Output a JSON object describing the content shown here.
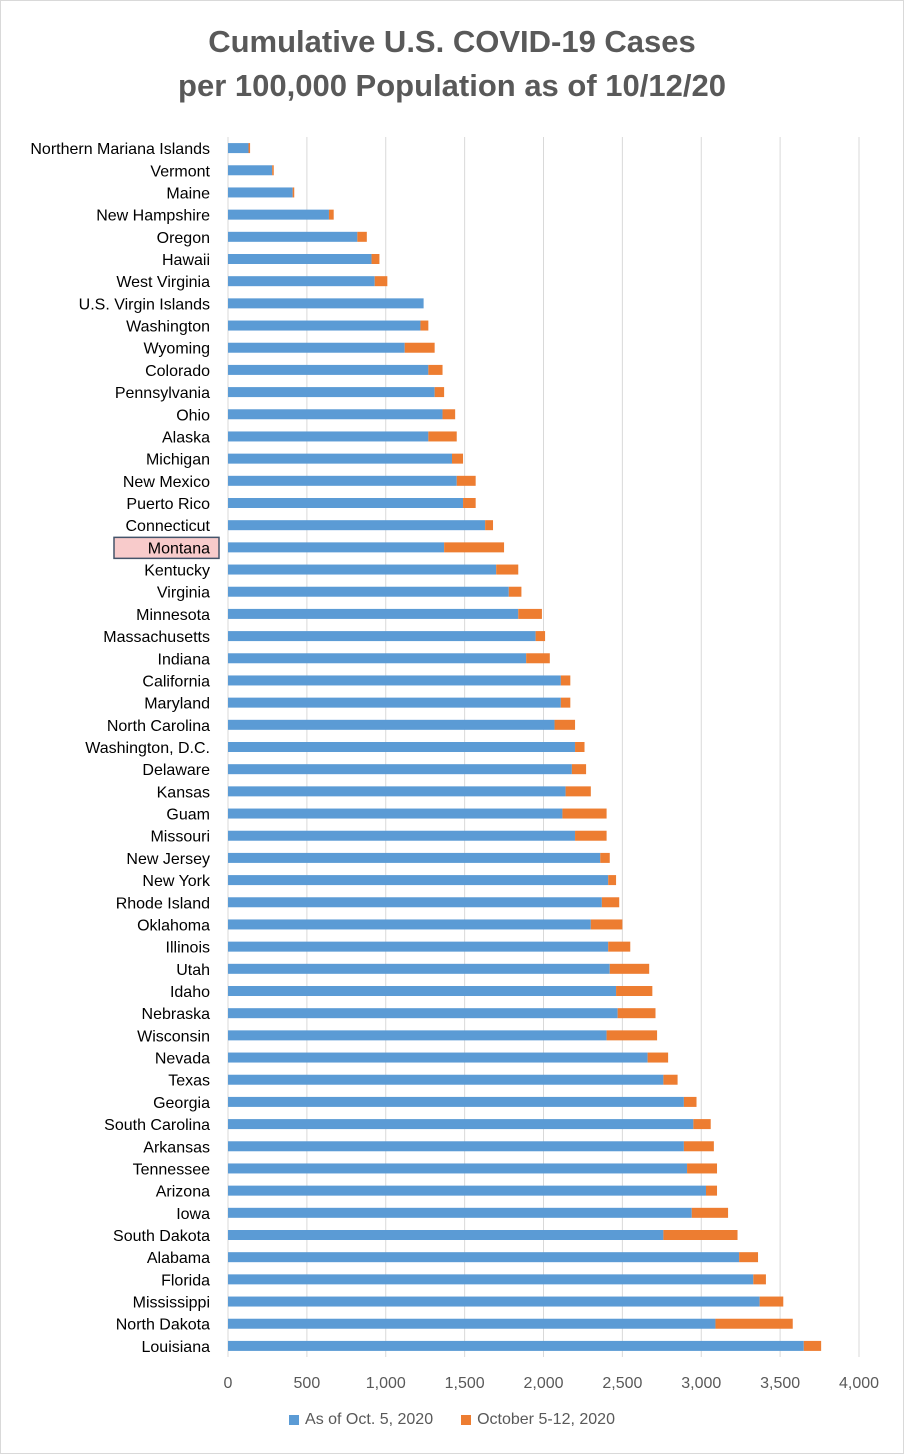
{
  "chart_data": {
    "type": "bar",
    "orientation": "horizontal",
    "stacked": true,
    "title": [
      "Cumulative U.S. COVID-19 Cases",
      "per 100,000 Population as of 10/12/20"
    ],
    "xlim": [
      0,
      4000
    ],
    "xticks": [
      "0",
      "500",
      "1,000",
      "1,500",
      "2,000",
      "2,500",
      "3,000",
      "3,500",
      "4,000"
    ],
    "grid": true,
    "legend_position": "bottom",
    "highlighted_category": "Montana",
    "colors": {
      "base": "#5b9bd5",
      "added": "#ed7d31",
      "grid": "#d9d9d9",
      "text": "#595959",
      "label": "#000000",
      "highlight_fill": "#f8cbcb",
      "highlight_border": "#44546a"
    },
    "categories": [
      "Northern Mariana Islands",
      "Vermont",
      "Maine",
      "New Hampshire",
      "Oregon",
      "Hawaii",
      "West Virginia",
      "U.S. Virgin Islands",
      "Washington",
      "Wyoming",
      "Colorado",
      "Pennsylvania",
      "Ohio",
      "Alaska",
      "Michigan",
      "New Mexico",
      "Puerto Rico",
      "Connecticut",
      "Montana",
      "Kentucky",
      "Virginia",
      "Minnesota",
      "Massachusetts",
      "Indiana",
      "California",
      "Maryland",
      "North Carolina",
      "Washington, D.C.",
      "Delaware",
      "Kansas",
      "Guam",
      "Missouri",
      "New Jersey",
      "New York",
      "Rhode Island",
      "Oklahoma",
      "Illinois",
      "Utah",
      "Idaho",
      "Nebraska",
      "Wisconsin",
      "Nevada",
      "Texas",
      "Georgia",
      "South Carolina",
      "Arkansas",
      "Tennessee",
      "Arizona",
      "Iowa",
      "South Dakota",
      "Alabama",
      "Florida",
      "Mississippi",
      "North Dakota",
      "Louisiana"
    ],
    "series": [
      {
        "name": "As of Oct. 5, 2020",
        "values": [
          130,
          280,
          410,
          640,
          820,
          910,
          930,
          1240,
          1220,
          1120,
          1270,
          1310,
          1360,
          1270,
          1420,
          1450,
          1490,
          1630,
          1370,
          1700,
          1780,
          1840,
          1950,
          1890,
          2110,
          2110,
          2070,
          2200,
          2180,
          2140,
          2120,
          2200,
          2360,
          2410,
          2370,
          2300,
          2410,
          2420,
          2460,
          2470,
          2400,
          2660,
          2760,
          2890,
          2950,
          2890,
          2910,
          3030,
          2940,
          2760,
          3240,
          3330,
          3370,
          3090,
          3650
        ]
      },
      {
        "name": "October 5-12, 2020",
        "values": [
          10,
          10,
          10,
          30,
          60,
          50,
          80,
          0,
          50,
          190,
          90,
          60,
          80,
          180,
          70,
          120,
          80,
          50,
          380,
          140,
          80,
          150,
          60,
          150,
          60,
          60,
          130,
          60,
          90,
          160,
          280,
          200,
          60,
          50,
          110,
          200,
          140,
          250,
          230,
          240,
          320,
          130,
          90,
          80,
          110,
          190,
          190,
          70,
          230,
          470,
          120,
          80,
          150,
          490,
          110
        ]
      }
    ]
  }
}
